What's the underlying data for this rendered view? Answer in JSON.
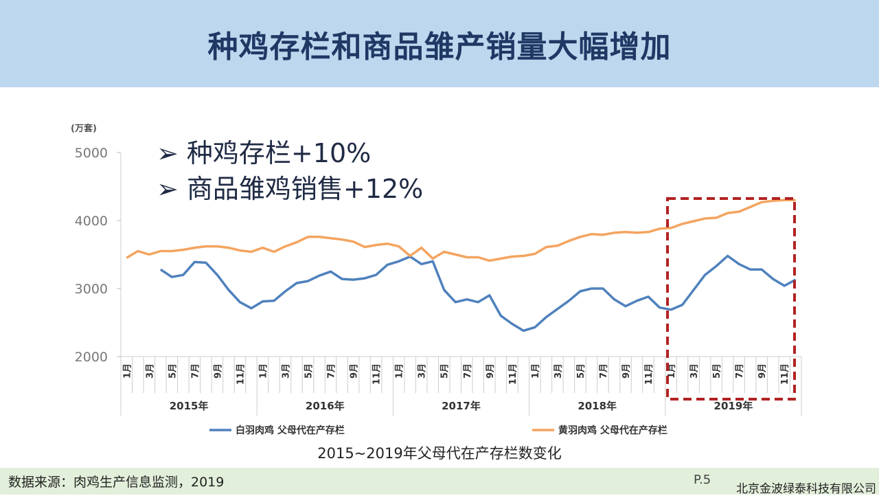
{
  "header": {
    "title": "种鸡存栏和商品雏产销量大幅增加"
  },
  "bullets": [
    "种鸡存栏+10%",
    "商品雏鸡销售+12%"
  ],
  "caption": "2015~2019年父母代在产存栏数变化",
  "footer": {
    "source": "数据来源：肉鸡生产信息监测，2019",
    "page": "P.5",
    "company": "北京金波绿泰科技有限公司"
  },
  "chart_data": {
    "type": "line",
    "ylabel": "(万套)",
    "ylim": [
      2000,
      5000
    ],
    "yticks": [
      "2000",
      "3000",
      "4000",
      "5000"
    ],
    "years": [
      "2015年",
      "2016年",
      "2017年",
      "2018年",
      "2019年"
    ],
    "month_labels": [
      "1月",
      "",
      "3月",
      "",
      "5月",
      "",
      "7月",
      "",
      "9月",
      "",
      "11月",
      ""
    ],
    "highlight": {
      "from": "2019年1月",
      "to": "2019年12月",
      "color": "#b22222"
    },
    "series": [
      {
        "name": "白羽肉鸡 父母代在产存栏",
        "color": "#4f81bd",
        "values": [
          null,
          null,
          null,
          3280,
          3170,
          3200,
          3390,
          3380,
          3200,
          2980,
          2800,
          2710,
          2810,
          2820,
          2960,
          3080,
          3110,
          3190,
          3250,
          3140,
          3130,
          3150,
          3200,
          3350,
          3400,
          3470,
          3360,
          3400,
          2980,
          2800,
          2840,
          2800,
          2900,
          2600,
          2480,
          2380,
          2430,
          2580,
          2700,
          2820,
          2960,
          3000,
          3000,
          2840,
          2740,
          2820,
          2880,
          2720,
          2690,
          2760,
          2980,
          3200,
          3330,
          3480,
          3360,
          3280,
          3280,
          3140,
          3040,
          3130
        ]
      },
      {
        "name": "黄羽肉鸡 父母代在产存栏",
        "color": "#f4a460",
        "values": [
          3450,
          3550,
          3500,
          3550,
          3550,
          3570,
          3600,
          3620,
          3620,
          3600,
          3560,
          3540,
          3600,
          3540,
          3620,
          3680,
          3760,
          3760,
          3740,
          3720,
          3690,
          3610,
          3640,
          3660,
          3620,
          3480,
          3600,
          3440,
          3540,
          3500,
          3460,
          3460,
          3410,
          3440,
          3470,
          3480,
          3510,
          3610,
          3630,
          3700,
          3760,
          3800,
          3790,
          3820,
          3830,
          3820,
          3830,
          3880,
          3890,
          3950,
          3990,
          4030,
          4040,
          4110,
          4130,
          4200,
          4270,
          4290,
          4300,
          4300
        ]
      }
    ]
  }
}
